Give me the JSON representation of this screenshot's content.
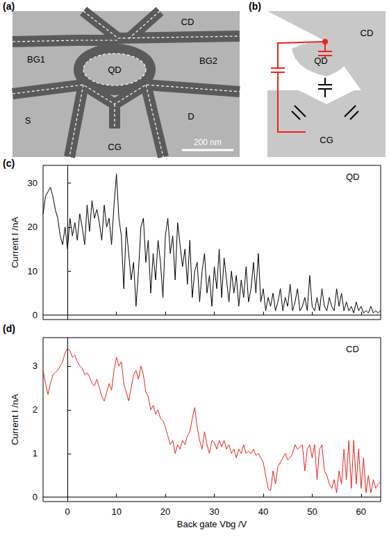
{
  "panels": {
    "a": {
      "letter": "(a)",
      "labels": [
        "CD",
        "BG1",
        "BG2",
        "QD",
        "S",
        "D",
        "CG"
      ],
      "scale_bar": "200 nm"
    },
    "b": {
      "letter": "(b)",
      "labels": [
        "CD",
        "QD",
        "CG"
      ]
    }
  },
  "chart_data": [
    {
      "type": "line",
      "panel_label": "(c)",
      "annotation": "QD",
      "color": "#000000",
      "ylabel": "Current I /nA",
      "tick_labels": "y",
      "xlim": [
        -5,
        64
      ],
      "xticks": [
        0,
        10,
        20,
        30,
        40,
        50,
        60
      ],
      "ylim": [
        -1,
        34
      ],
      "yticks": [
        0,
        10,
        20,
        30
      ],
      "x": [
        -5,
        -4.5,
        -4,
        -3.5,
        -3,
        -2.5,
        -2,
        -1.5,
        -1,
        -0.5,
        0,
        0.5,
        1,
        1.5,
        2,
        2.5,
        3,
        3.5,
        4,
        4.5,
        5,
        5.5,
        6,
        6.5,
        7,
        7.5,
        8,
        8.5,
        9,
        9.5,
        10,
        10.5,
        11,
        11.5,
        12,
        12.5,
        13,
        13.5,
        14,
        14.5,
        15,
        15.5,
        16,
        16.5,
        17,
        17.5,
        18,
        18.5,
        19,
        19.5,
        20,
        20.5,
        21,
        21.5,
        22,
        22.5,
        23,
        23.5,
        24,
        24.5,
        25,
        25.5,
        26,
        26.5,
        27,
        27.5,
        28,
        28.5,
        29,
        29.5,
        30,
        30.5,
        31,
        31.5,
        32,
        32.5,
        33,
        33.5,
        34,
        34.5,
        35,
        35.5,
        36,
        36.5,
        37,
        37.5,
        38,
        38.5,
        39,
        39.5,
        40,
        40.5,
        41,
        41.5,
        42,
        42.5,
        43,
        43.5,
        44,
        44.5,
        45,
        45.5,
        46,
        46.5,
        47,
        47.5,
        48,
        48.5,
        49,
        49.5,
        50,
        50.5,
        51,
        51.5,
        52,
        52.5,
        53,
        53.5,
        54,
        54.5,
        55,
        55.5,
        56,
        56.5,
        57,
        57.5,
        58,
        58.5,
        59,
        59.5,
        60,
        60.5,
        61,
        61.5,
        62,
        62.5,
        63,
        63.5,
        64
      ],
      "values": [
        23,
        27,
        28,
        29,
        27,
        24,
        22,
        18,
        16,
        20,
        15,
        22,
        18,
        21,
        17,
        23,
        20,
        16,
        25,
        19,
        26,
        22,
        24,
        21,
        17,
        25,
        20,
        22,
        16,
        25,
        32,
        22,
        18,
        6,
        20,
        14,
        8,
        12,
        2,
        10,
        20,
        22,
        12,
        17,
        5,
        14,
        8,
        17,
        12,
        4,
        18,
        22,
        14,
        18,
        8,
        21,
        16,
        11,
        15,
        7,
        17,
        4,
        10,
        12,
        3,
        10,
        14,
        5,
        9,
        2,
        11,
        6,
        15,
        4,
        13,
        8,
        3,
        10,
        5,
        9,
        2,
        8,
        4,
        11,
        3,
        6,
        12,
        5,
        14,
        3,
        6,
        1,
        4,
        2,
        5,
        1,
        3,
        6,
        1,
        4,
        2,
        7,
        1,
        3,
        6,
        1,
        2,
        4,
        1,
        9,
        2,
        1,
        4,
        1,
        6,
        2,
        1,
        4,
        2,
        1,
        6,
        2,
        5,
        1,
        3,
        1,
        2,
        0.5,
        3,
        1,
        2,
        0.5,
        1,
        0.5,
        2,
        0.5,
        1,
        0.5,
        1
      ]
    },
    {
      "type": "line",
      "panel_label": "(d)",
      "annotation": "CD",
      "color": "#e8231e",
      "ylabel": "Current I /nA",
      "xlabel": "Back gate Vbg /V",
      "xlim": [
        -5,
        64
      ],
      "xticks": [
        0,
        10,
        20,
        30,
        40,
        50,
        60
      ],
      "ylim": [
        -0.1,
        3.65
      ],
      "yticks": [
        0,
        1,
        2,
        3
      ],
      "x": [
        -5,
        -4.5,
        -4,
        -3.5,
        -3,
        -2.5,
        -2,
        -1.5,
        -1,
        -0.5,
        0,
        0.5,
        1,
        1.5,
        2,
        2.5,
        3,
        3.5,
        4,
        4.5,
        5,
        5.5,
        6,
        6.5,
        7,
        7.5,
        8,
        8.5,
        9,
        9.5,
        10,
        10.5,
        11,
        11.5,
        12,
        12.5,
        13,
        13.5,
        14,
        14.5,
        15,
        15.5,
        16,
        16.5,
        17,
        17.5,
        18,
        18.5,
        19,
        19.5,
        20,
        20.5,
        21,
        21.5,
        22,
        22.5,
        23,
        23.5,
        24,
        24.5,
        25,
        25.5,
        26,
        26.5,
        27,
        27.5,
        28,
        28.5,
        29,
        29.5,
        30,
        30.5,
        31,
        31.5,
        32,
        32.5,
        33,
        33.5,
        34,
        34.5,
        35,
        35.5,
        36,
        36.5,
        37,
        37.5,
        38,
        38.5,
        39,
        39.5,
        40,
        40.5,
        41,
        41.5,
        42,
        42.5,
        43,
        43.5,
        44,
        44.5,
        45,
        45.5,
        46,
        46.5,
        47,
        47.5,
        48,
        48.5,
        49,
        49.5,
        50,
        50.5,
        51,
        51.5,
        52,
        52.5,
        53,
        53.5,
        54,
        54.5,
        55,
        55.5,
        56,
        56.5,
        57,
        57.5,
        58,
        58.5,
        59,
        59.5,
        60,
        60.5,
        61,
        61.5,
        62,
        62.5,
        63,
        63.5,
        64
      ],
      "values": [
        2.9,
        2.6,
        2.35,
        2.6,
        2.8,
        2.85,
        2.9,
        3.0,
        3.1,
        3.3,
        3.4,
        3.35,
        3.2,
        3.25,
        3.1,
        3.0,
        2.95,
        2.8,
        2.85,
        2.75,
        2.6,
        2.55,
        2.7,
        2.5,
        2.3,
        2.2,
        2.4,
        2.6,
        2.45,
        2.9,
        3.2,
        3.0,
        3.1,
        2.6,
        2.4,
        2.2,
        2.5,
        2.8,
        2.9,
        2.7,
        3.0,
        2.8,
        2.4,
        2.3,
        2.0,
        2.1,
        1.9,
        2.0,
        1.8,
        1.75,
        1.6,
        1.4,
        1.2,
        1.3,
        1.0,
        1.2,
        1.1,
        1.3,
        1.2,
        1.4,
        1.5,
        1.8,
        2.05,
        1.6,
        1.3,
        1.1,
        1.5,
        1.2,
        1.0,
        1.3,
        1.25,
        1.1,
        1.3,
        1.15,
        1.3,
        1.1,
        1.2,
        1.0,
        1.1,
        0.9,
        1.1,
        1.0,
        1.2,
        1.0,
        1.05,
        1.0,
        1.1,
        0.95,
        1.0,
        0.9,
        0.8,
        0.5,
        0.2,
        0.15,
        0.6,
        0.3,
        0.7,
        0.8,
        0.9,
        1.0,
        0.85,
        0.9,
        1.0,
        1.2,
        1.1,
        1.15,
        1.2,
        0.6,
        1.1,
        1.2,
        0.9,
        1.2,
        0.4,
        1.1,
        1.2,
        0.6,
        0.5,
        0.3,
        0.2,
        0.4,
        0.1,
        0.6,
        0.3,
        1.1,
        0.4,
        1.3,
        0.2,
        1.3,
        0.3,
        1.1,
        0.2,
        0.9,
        0.1,
        0.5,
        0.1,
        0.4,
        0.2,
        0.3,
        0.35
      ]
    }
  ]
}
